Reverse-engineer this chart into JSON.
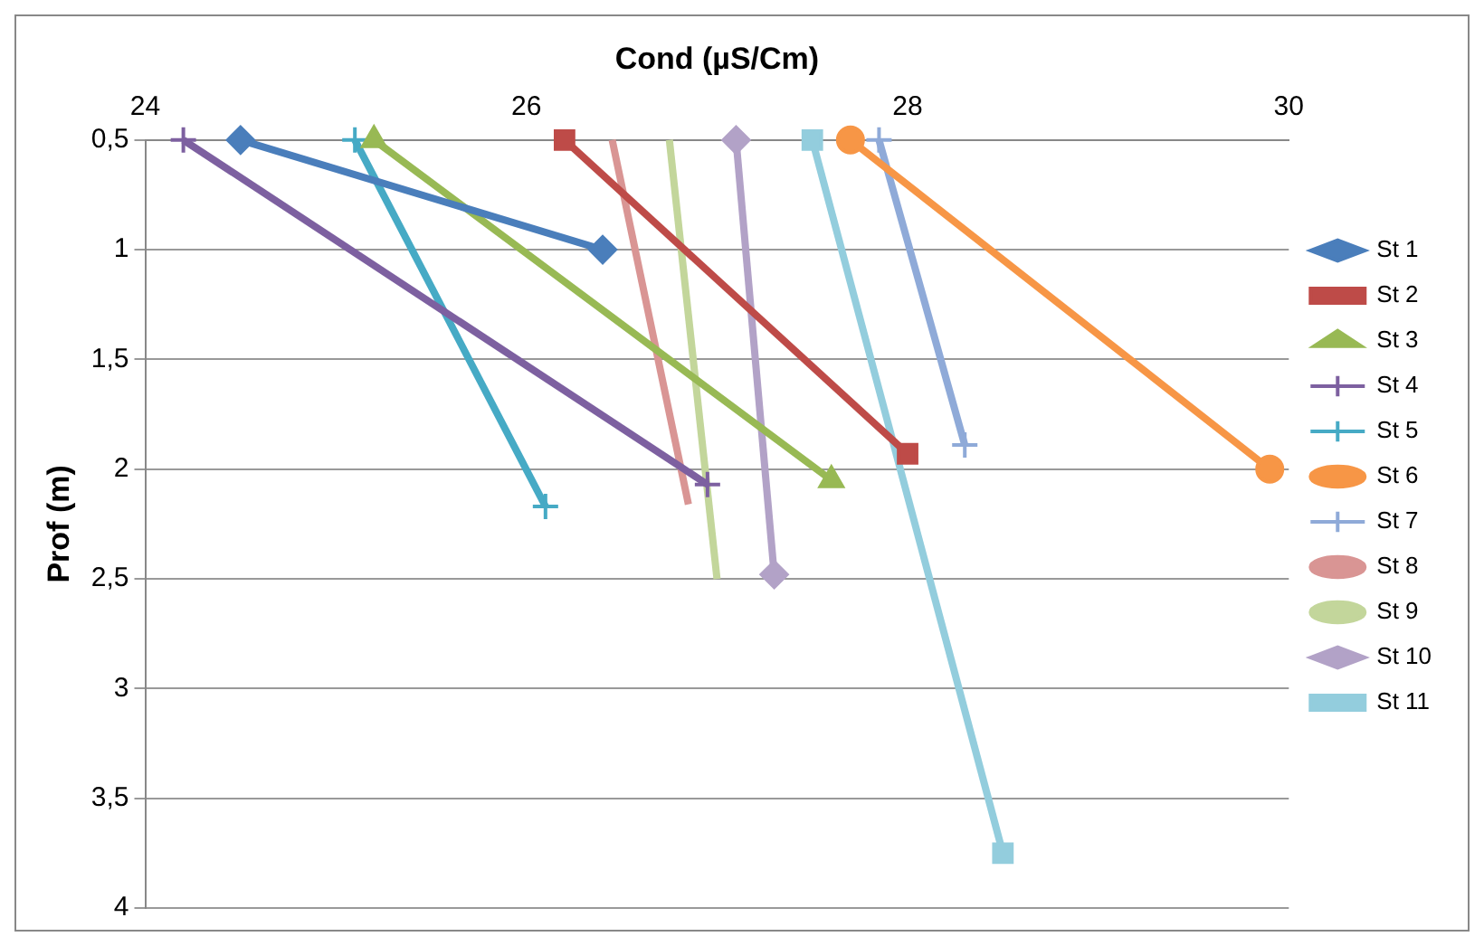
{
  "chart_data": {
    "type": "line",
    "xlabel": "Cond (µS/Cm)",
    "ylabel": "Prof (m)",
    "xlim": [
      24,
      30
    ],
    "xticks": [
      24,
      26,
      28,
      30
    ],
    "ylim": [
      4,
      0.5
    ],
    "yticks": [
      {
        "value": 0.5,
        "label": "0,5"
      },
      1,
      {
        "value": 1.5,
        "label": "1,5"
      },
      2,
      {
        "value": 2.5,
        "label": "2,5"
      },
      3,
      {
        "value": 3.5,
        "label": "3,5"
      },
      4
    ],
    "grid": "y",
    "legend": "right",
    "series": [
      {
        "name": "St 1",
        "color": "#4a7ebb",
        "marker": "diamond",
        "x": [
          24.5,
          26.4
        ],
        "values": [
          0.5,
          1.0
        ]
      },
      {
        "name": "St 2",
        "color": "#be4b48",
        "marker": "square",
        "x": [
          26.2,
          28.0
        ],
        "values": [
          0.5,
          1.93
        ]
      },
      {
        "name": "St 3",
        "color": "#98b954",
        "marker": "triangle",
        "x": [
          25.2,
          27.6
        ],
        "values": [
          0.5,
          2.05
        ]
      },
      {
        "name": "St 4",
        "color": "#7d60a0",
        "marker": "cross",
        "x": [
          24.2,
          26.95
        ],
        "values": [
          0.5,
          2.07
        ]
      },
      {
        "name": "St 5",
        "color": "#46aac5",
        "marker": "cross",
        "x": [
          25.1,
          26.1
        ],
        "values": [
          0.5,
          2.17
        ]
      },
      {
        "name": "St 6",
        "color": "#f79646",
        "marker": "circle",
        "x": [
          27.7,
          29.9
        ],
        "values": [
          0.5,
          2.0
        ]
      },
      {
        "name": "St 7",
        "color": "#8faad8",
        "marker": "cross",
        "x": [
          27.85,
          28.3
        ],
        "values": [
          0.5,
          1.89
        ]
      },
      {
        "name": "St 8",
        "color": "#d99594",
        "marker": "none",
        "x": [
          26.45,
          26.85
        ],
        "values": [
          0.5,
          2.16
        ]
      },
      {
        "name": "St 9",
        "color": "#c3d69b",
        "marker": "none",
        "x": [
          26.75,
          27.0
        ],
        "values": [
          0.5,
          2.5
        ]
      },
      {
        "name": "St 10",
        "color": "#b2a2c7",
        "marker": "diamond",
        "x": [
          27.1,
          27.3
        ],
        "values": [
          0.5,
          2.48
        ]
      },
      {
        "name": "St 11",
        "color": "#93cddd",
        "marker": "square",
        "x": [
          27.5,
          28.5
        ],
        "values": [
          0.5,
          3.75
        ]
      }
    ]
  }
}
